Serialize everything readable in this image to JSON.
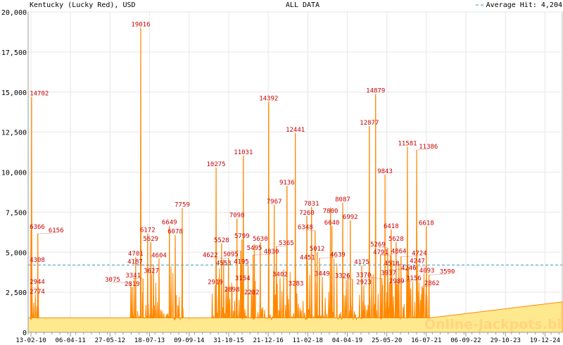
{
  "chart_data": {
    "type": "area",
    "title": "ALL DATA",
    "subtitle": "Kentucky (Lucky Red), USD",
    "legend": {
      "label": "Average Hit: 4,204",
      "position": "top-right"
    },
    "average": 4204,
    "ylim": [
      0,
      20000
    ],
    "yticks": [
      "0",
      "2,500",
      "5,000",
      "7,500",
      "10,000",
      "12,500",
      "15,000",
      "17,500",
      "20,000"
    ],
    "ytick_values": [
      0,
      2500,
      5000,
      7500,
      10000,
      12500,
      15000,
      17500,
      20000
    ],
    "xlim": [
      "2010-02-13",
      "2025-06-26"
    ],
    "xticks": [
      "13-02-10",
      "06-04-11",
      "27-05-12",
      "18-07-13",
      "09-09-14",
      "31-10-15",
      "21-12-16",
      "11-02-18",
      "04-04-19",
      "25-05-20",
      "16-07-21",
      "06-09-22",
      "29-10-23",
      "19-12-24"
    ],
    "xtick_dates": [
      "2010-02-13",
      "2011-04-06",
      "2012-05-27",
      "2013-07-18",
      "2014-09-09",
      "2015-10-31",
      "2016-12-21",
      "2018-02-11",
      "2019-04-04",
      "2020-05-25",
      "2021-07-16",
      "2022-09-06",
      "2023-10-29",
      "2024-12-19"
    ],
    "grid": true,
    "baseline": 900,
    "active_ranges": [
      [
        "2010-02-13",
        "2010-05-10"
      ],
      [
        "2013-01-01",
        "2014-07-20"
      ],
      [
        "2015-05-10",
        "2021-08-20"
      ]
    ],
    "tail": [
      [
        "2021-08-20",
        900
      ],
      [
        "2025-06-26",
        1900
      ]
    ],
    "series": [
      {
        "name": "Hits",
        "points": [
          [
            "2010-02-13",
            6366
          ],
          [
            "2010-02-16",
            4308
          ],
          [
            "2010-02-18",
            2944
          ],
          [
            "2010-02-20",
            14702
          ],
          [
            "2010-02-24",
            2774
          ],
          [
            "2010-04-26",
            6156
          ],
          [
            "2013-01-02",
            3075
          ],
          [
            "2013-01-16",
            2819
          ],
          [
            "2013-02-22",
            4701
          ],
          [
            "2013-04-16",
            19016
          ],
          [
            "2013-05-10",
            3341
          ],
          [
            "2013-06-28",
            6172
          ],
          [
            "2013-07-31",
            5629
          ],
          [
            "2013-08-06",
            3627
          ],
          [
            "2013-08-28",
            4187
          ],
          [
            "2013-10-26",
            4604
          ],
          [
            "2014-02-13",
            6649
          ],
          [
            "2014-04-15",
            6078
          ],
          [
            "2014-06-28",
            7759
          ],
          [
            "2015-06-12",
            2919
          ],
          [
            "2015-06-20",
            10275
          ],
          [
            "2015-08-17",
            5528
          ],
          [
            "2015-09-08",
            4553
          ],
          [
            "2015-10-29",
            4622
          ],
          [
            "2015-12-05",
            2898
          ],
          [
            "2016-01-26",
            7098
          ],
          [
            "2016-03-05",
            5095
          ],
          [
            "2016-03-12",
            4195
          ],
          [
            "2016-03-19",
            5799
          ],
          [
            "2016-03-26",
            3154
          ],
          [
            "2016-04-03",
            11031
          ],
          [
            "2016-06-30",
            2282
          ],
          [
            "2016-07-14",
            4830
          ],
          [
            "2016-07-28",
            5495
          ],
          [
            "2016-09-28",
            5630
          ],
          [
            "2016-12-26",
            14392
          ],
          [
            "2017-02-22",
            7967
          ],
          [
            "2017-03-18",
            5365
          ],
          [
            "2017-04-25",
            3402
          ],
          [
            "2017-07-07",
            9136
          ],
          [
            "2017-10-03",
            12441
          ],
          [
            "2017-10-10",
            3283
          ],
          [
            "2018-02-01",
            7260
          ],
          [
            "2018-02-08",
            4451
          ],
          [
            "2018-03-23",
            7831
          ],
          [
            "2018-04-30",
            6348
          ],
          [
            "2018-05-21",
            5012
          ],
          [
            "2018-06-15",
            4639
          ],
          [
            "2018-07-14",
            3449
          ],
          [
            "2018-10-09",
            7800
          ],
          [
            "2018-10-24",
            6640
          ],
          [
            "2019-02-15",
            8087
          ],
          [
            "2019-05-06",
            6992
          ],
          [
            "2019-05-28",
            3326
          ],
          [
            "2019-09-04",
            4175
          ],
          [
            "2019-09-26",
            2923
          ],
          [
            "2019-11-23",
            12877
          ],
          [
            "2020-01-28",
            14879
          ],
          [
            "2020-03-19",
            4864
          ],
          [
            "2020-04-03",
            3370
          ],
          [
            "2020-05-06",
            9843
          ],
          [
            "2020-06-04",
            5269
          ],
          [
            "2020-07-03",
            4791
          ],
          [
            "2020-07-10",
            6418
          ],
          [
            "2020-07-17",
            4518
          ],
          [
            "2020-08-24",
            3156
          ],
          [
            "2020-08-31",
            5628
          ],
          [
            "2020-09-07",
            2989
          ],
          [
            "2020-09-30",
            4246
          ],
          [
            "2020-10-22",
            4724
          ],
          [
            "2020-12-22",
            3937
          ],
          [
            "2020-12-29",
            11581
          ],
          [
            "2021-01-10",
            4093
          ],
          [
            "2021-04-05",
            11386
          ],
          [
            "2021-04-12",
            4247
          ],
          [
            "2021-06-01",
            2862
          ],
          [
            "2021-07-16",
            6618
          ],
          [
            "2021-08-13",
            3590
          ]
        ]
      }
    ],
    "colors": {
      "fill": "#ffe98f",
      "line": "#ff8800",
      "label": "#cc0000",
      "average": "#3399cc",
      "grid": "#e6e6e6",
      "axis": "#999999"
    },
    "watermark": "Online-Jackpots.biz"
  }
}
